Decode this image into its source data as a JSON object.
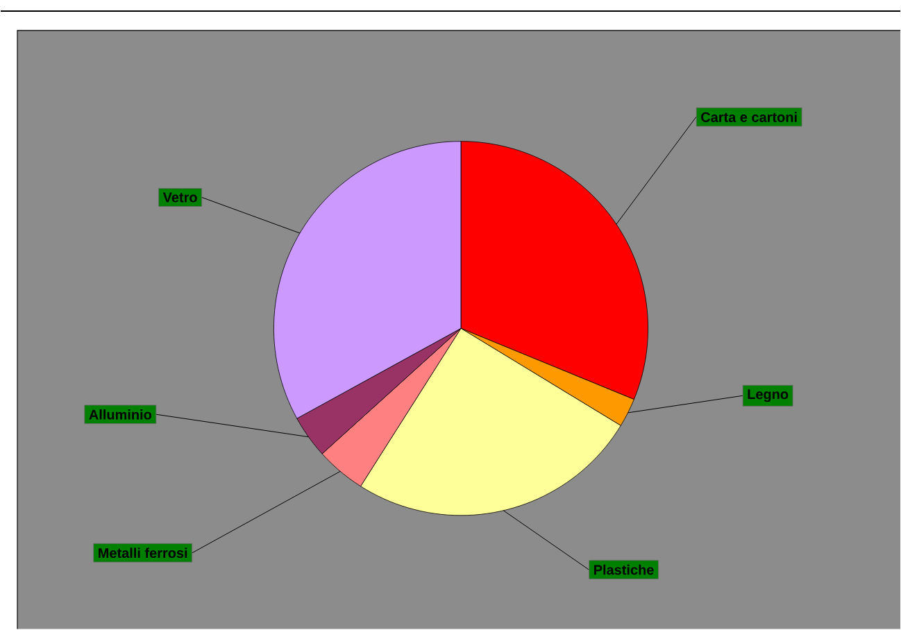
{
  "chart_data": {
    "type": "pie",
    "categories": [
      "Carta e cartoni",
      "Legno",
      "Plastiche",
      "Metalli ferrosi",
      "Alluminio",
      "Vetro"
    ],
    "values": [
      31.2,
      2.5,
      25.3,
      4.3,
      3.7,
      33.0
    ],
    "colors": [
      "#ff0000",
      "#ff9900",
      "#ffff99",
      "#ff8080",
      "#993366",
      "#cc99ff"
    ]
  }
}
